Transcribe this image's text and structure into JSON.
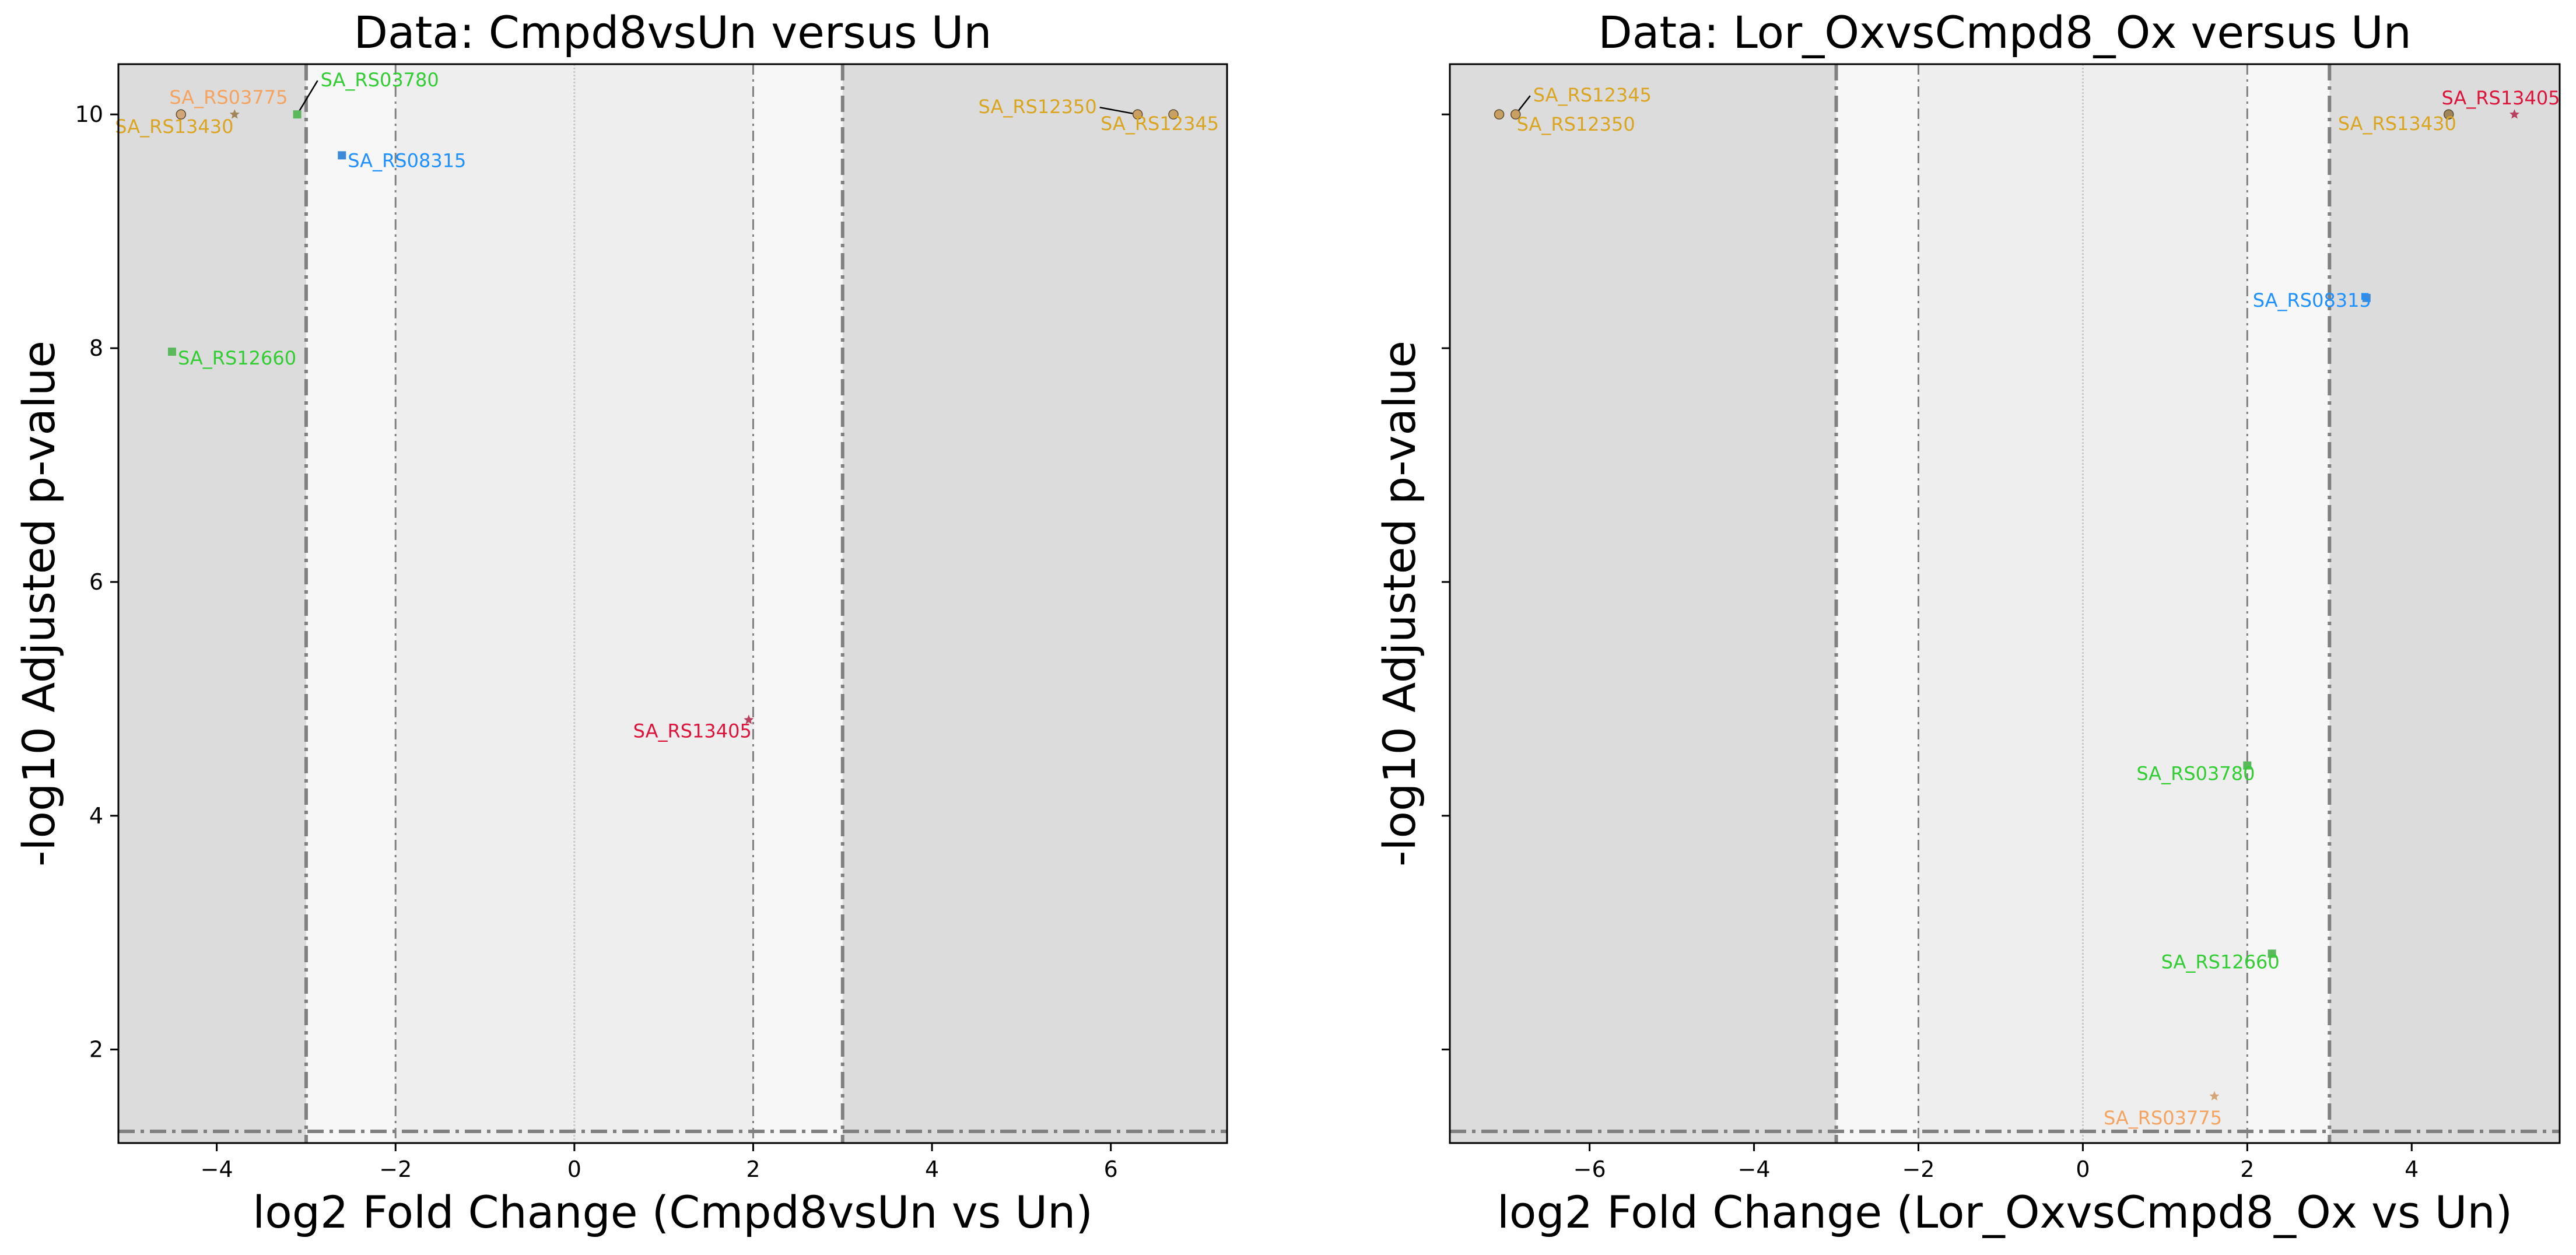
{
  "colors": {
    "dark_band": "#dcdcdc",
    "mid_band": "#eeeeee",
    "light_band": "#f7f7f7",
    "threshold_line": "#808080",
    "zero_line": "#c8c8c8",
    "leader": "#000000",
    "label_colors": {
      "SA_RS03775": "#f4a460",
      "SA_RS13430": "#daa520",
      "SA_RS12345": "#daa520",
      "SA_RS12350": "#daa520",
      "SA_RS03780": "#32cd32",
      "SA_RS12660": "#32cd32",
      "SA_RS08315": "#1e90ff",
      "SA_RS13405": "#dc143c"
    },
    "marker_colors": {
      "SA_RS03775": "#d2a679",
      "SA_RS13430": "#a0845a",
      "SA_RS12345": "#c8a064",
      "SA_RS12350": "#c8a064",
      "SA_RS03780": "#5cb85c",
      "SA_RS12660": "#5cb85c",
      "SA_RS08315": "#3c8ad8",
      "SA_RS13405": "#b84060"
    }
  },
  "chart_data": [
    {
      "type": "scatter",
      "title": "Data: Cmpd8vsUn versus Un",
      "xlabel": "log2 Fold Change (Cmpd8vsUn vs Un)",
      "ylabel": "-log10 Adjusted p-value",
      "xlim": [
        -5.1,
        7.3
      ],
      "ylim": [
        1.2,
        10.43
      ],
      "xticks": [
        -4,
        -2,
        0,
        2,
        4,
        6
      ],
      "xtick_labels": [
        "−4",
        "−2",
        "0",
        "2",
        "4",
        "6"
      ],
      "yticks": [
        2,
        4,
        6,
        8,
        10
      ],
      "ytick_labels": [
        "2",
        "4",
        "6",
        "8",
        "10"
      ],
      "fc_thresholds_inner": [
        -2,
        2
      ],
      "fc_thresholds_outer": [
        -3,
        3
      ],
      "p_threshold": 1.3,
      "grid": false,
      "legend": "none",
      "points": [
        {
          "gene": "SA_RS03775",
          "x": -4.4,
          "y": 10.0,
          "marker": "circle"
        },
        {
          "gene": "SA_RS13430",
          "x": -3.8,
          "y": 10.0,
          "marker": "star"
        },
        {
          "gene": "SA_RS03780",
          "x": -3.1,
          "y": 10.0,
          "marker": "square"
        },
        {
          "gene": "SA_RS08315",
          "x": -2.6,
          "y": 9.65,
          "marker": "square"
        },
        {
          "gene": "SA_RS12660",
          "x": -4.5,
          "y": 7.97,
          "marker": "square"
        },
        {
          "gene": "SA_RS13405",
          "x": 1.95,
          "y": 4.82,
          "marker": "star"
        },
        {
          "gene": "SA_RS12350",
          "x": 6.3,
          "y": 10.0,
          "marker": "circle"
        },
        {
          "gene": "SA_RS12345",
          "x": 6.7,
          "y": 10.0,
          "marker": "circle"
        }
      ]
    },
    {
      "type": "scatter",
      "title": "Data: Lor_OxvsCmpd8_Ox versus Un",
      "xlabel": "log2 Fold Change (Lor_OxvsCmpd8_Ox vs Un)",
      "ylabel": "-log10 Adjusted p-value",
      "xlim": [
        -7.7,
        5.8
      ],
      "ylim": [
        1.2,
        10.43
      ],
      "xticks": [
        -6,
        -4,
        -2,
        0,
        2,
        4
      ],
      "xtick_labels": [
        "−6",
        "−4",
        "−2",
        "0",
        "2",
        "4"
      ],
      "yticks": [
        2,
        4,
        6,
        8,
        10
      ],
      "ytick_labels": [
        "",
        "",
        "",
        "",
        ""
      ],
      "fc_thresholds_inner": [
        -2,
        2
      ],
      "fc_thresholds_outer": [
        -3,
        3
      ],
      "p_threshold": 1.3,
      "grid": false,
      "legend": "none",
      "points": [
        {
          "gene": "SA_RS12350",
          "x": -7.1,
          "y": 10.0,
          "marker": "circle"
        },
        {
          "gene": "SA_RS12345",
          "x": -6.9,
          "y": 10.0,
          "marker": "circle"
        },
        {
          "gene": "SA_RS13430",
          "x": 4.45,
          "y": 10.0,
          "marker": "circle"
        },
        {
          "gene": "SA_RS13405",
          "x": 5.25,
          "y": 10.0,
          "marker": "star"
        },
        {
          "gene": "SA_RS08315",
          "x": 3.45,
          "y": 8.43,
          "marker": "square"
        },
        {
          "gene": "SA_RS03780",
          "x": 2.0,
          "y": 4.43,
          "marker": "square"
        },
        {
          "gene": "SA_RS12660",
          "x": 2.3,
          "y": 2.82,
          "marker": "square"
        },
        {
          "gene": "SA_RS03775",
          "x": 1.6,
          "y": 1.6,
          "marker": "star"
        }
      ]
    }
  ]
}
